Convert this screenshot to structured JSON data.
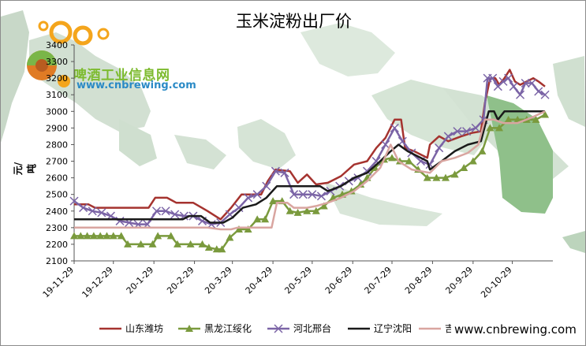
{
  "title": "玉米淀粉出厂价",
  "logo": {
    "text_cn": "啤酒工业信息网",
    "url_text": "www.cnbrewing.com"
  },
  "watermark": "www.cnbrewing.com",
  "chart_data": {
    "type": "line",
    "title": "玉米淀粉出厂价",
    "xlabel": "",
    "ylabel": "元/吨",
    "ylim": [
      2100,
      3400
    ],
    "yticks": [
      2100,
      2200,
      2300,
      2400,
      2500,
      2600,
      2700,
      2800,
      2900,
      3000,
      3100,
      3200,
      3300,
      3400
    ],
    "xlim": [
      "2019-11-29",
      "2020-11-29"
    ],
    "xticks": [
      {
        "date": "2019-11-29",
        "label": "19-11-29"
      },
      {
        "date": "2019-12-29",
        "label": "19-12-29"
      },
      {
        "date": "2020-01-29",
        "label": "20-1-29"
      },
      {
        "date": "2020-02-29",
        "label": "20-2-29"
      },
      {
        "date": "2020-03-29",
        "label": "20-3-29"
      },
      {
        "date": "2020-04-29",
        "label": "20-4-29"
      },
      {
        "date": "2020-05-29",
        "label": "20-5-29"
      },
      {
        "date": "2020-06-29",
        "label": "20-6-29"
      },
      {
        "date": "2020-07-29",
        "label": "20-7-29"
      },
      {
        "date": "2020-08-29",
        "label": "20-8-29"
      },
      {
        "date": "2020-09-29",
        "label": "20-9-29"
      },
      {
        "date": "2020-10-29",
        "label": "20-10-29"
      }
    ],
    "grid": false,
    "legend_position": "bottom",
    "series": [
      {
        "name": "山东潍坊",
        "color": "#a5332f",
        "marker": "none",
        "points": [
          [
            "2019-11-29",
            2440
          ],
          [
            "2019-12-10",
            2440
          ],
          [
            "2019-12-15",
            2420
          ],
          [
            "2020-01-25",
            2420
          ],
          [
            "2020-01-30",
            2480
          ],
          [
            "2020-02-08",
            2480
          ],
          [
            "2020-02-15",
            2450
          ],
          [
            "2020-02-28",
            2450
          ],
          [
            "2020-03-10",
            2400
          ],
          [
            "2020-03-20",
            2350
          ],
          [
            "2020-03-28",
            2420
          ],
          [
            "2020-04-05",
            2500
          ],
          [
            "2020-04-20",
            2500
          ],
          [
            "2020-04-25",
            2580
          ],
          [
            "2020-05-01",
            2650
          ],
          [
            "2020-05-12",
            2640
          ],
          [
            "2020-05-18",
            2570
          ],
          [
            "2020-05-25",
            2620
          ],
          [
            "2020-06-01",
            2560
          ],
          [
            "2020-06-10",
            2570
          ],
          [
            "2020-06-20",
            2610
          ],
          [
            "2020-06-30",
            2680
          ],
          [
            "2020-07-10",
            2700
          ],
          [
            "2020-07-17",
            2780
          ],
          [
            "2020-07-24",
            2840
          ],
          [
            "2020-07-31",
            2950
          ],
          [
            "2020-08-05",
            2950
          ],
          [
            "2020-08-08",
            2780
          ],
          [
            "2020-08-15",
            2760
          ],
          [
            "2020-08-20",
            2740
          ],
          [
            "2020-08-25",
            2720
          ],
          [
            "2020-08-27",
            2800
          ],
          [
            "2020-09-03",
            2850
          ],
          [
            "2020-09-10",
            2820
          ],
          [
            "2020-09-20",
            2850
          ],
          [
            "2020-09-28",
            2870
          ],
          [
            "2020-10-05",
            2880
          ],
          [
            "2020-10-08",
            3050
          ],
          [
            "2020-10-12",
            3200
          ],
          [
            "2020-10-16",
            3200
          ],
          [
            "2020-10-19",
            3160
          ],
          [
            "2020-10-23",
            3200
          ],
          [
            "2020-10-27",
            3250
          ],
          [
            "2020-10-31",
            3180
          ],
          [
            "2020-11-04",
            3160
          ],
          [
            "2020-11-09",
            3180
          ],
          [
            "2020-11-14",
            3200
          ],
          [
            "2020-11-18",
            3180
          ],
          [
            "2020-11-23",
            3150
          ]
        ]
      },
      {
        "name": "黑龙江绥化",
        "color": "#7a9a3d",
        "marker": "triangle",
        "points": [
          [
            "2019-11-29",
            2250
          ],
          [
            "2019-12-04",
            2250
          ],
          [
            "2019-12-09",
            2250
          ],
          [
            "2019-12-14",
            2250
          ],
          [
            "2019-12-19",
            2250
          ],
          [
            "2019-12-24",
            2250
          ],
          [
            "2019-12-29",
            2250
          ],
          [
            "2020-01-04",
            2250
          ],
          [
            "2020-01-09",
            2200
          ],
          [
            "2020-01-19",
            2200
          ],
          [
            "2020-01-28",
            2200
          ],
          [
            "2020-02-01",
            2250
          ],
          [
            "2020-02-11",
            2250
          ],
          [
            "2020-02-16",
            2200
          ],
          [
            "2020-02-26",
            2200
          ],
          [
            "2020-03-06",
            2200
          ],
          [
            "2020-03-11",
            2180
          ],
          [
            "2020-03-17",
            2170
          ],
          [
            "2020-03-21",
            2170
          ],
          [
            "2020-03-27",
            2240
          ],
          [
            "2020-04-03",
            2290
          ],
          [
            "2020-04-10",
            2290
          ],
          [
            "2020-04-17",
            2350
          ],
          [
            "2020-04-23",
            2350
          ],
          [
            "2020-04-29",
            2460
          ],
          [
            "2020-05-06",
            2460
          ],
          [
            "2020-05-12",
            2400
          ],
          [
            "2020-05-18",
            2390
          ],
          [
            "2020-05-25",
            2400
          ],
          [
            "2020-06-01",
            2400
          ],
          [
            "2020-06-07",
            2430
          ],
          [
            "2020-06-14",
            2480
          ],
          [
            "2020-06-21",
            2500
          ],
          [
            "2020-06-28",
            2520
          ],
          [
            "2020-07-05",
            2560
          ],
          [
            "2020-07-10",
            2600
          ],
          [
            "2020-07-16",
            2660
          ],
          [
            "2020-07-23",
            2710
          ],
          [
            "2020-07-29",
            2720
          ],
          [
            "2020-08-04",
            2700
          ],
          [
            "2020-08-11",
            2700
          ],
          [
            "2020-08-18",
            2650
          ],
          [
            "2020-08-25",
            2600
          ],
          [
            "2020-09-01",
            2600
          ],
          [
            "2020-09-08",
            2600
          ],
          [
            "2020-09-15",
            2620
          ],
          [
            "2020-09-22",
            2660
          ],
          [
            "2020-09-29",
            2700
          ],
          [
            "2020-10-06",
            2760
          ],
          [
            "2020-10-12",
            2900
          ],
          [
            "2020-10-19",
            2900
          ],
          [
            "2020-10-26",
            2950
          ],
          [
            "2020-11-02",
            2950
          ],
          [
            "2020-11-09",
            2950
          ],
          [
            "2020-11-16",
            2950
          ],
          [
            "2020-11-23",
            2980
          ]
        ]
      },
      {
        "name": "河北邢台",
        "color": "#7b64a6",
        "marker": "cross",
        "points": [
          [
            "2019-11-29",
            2460
          ],
          [
            "2019-12-06",
            2420
          ],
          [
            "2019-12-13",
            2400
          ],
          [
            "2019-12-20",
            2390
          ],
          [
            "2019-12-27",
            2370
          ],
          [
            "2020-01-03",
            2340
          ],
          [
            "2020-01-10",
            2330
          ],
          [
            "2020-01-17",
            2320
          ],
          [
            "2020-01-24",
            2320
          ],
          [
            "2020-01-31",
            2400
          ],
          [
            "2020-02-07",
            2400
          ],
          [
            "2020-02-14",
            2380
          ],
          [
            "2020-02-21",
            2370
          ],
          [
            "2020-02-28",
            2370
          ],
          [
            "2020-03-06",
            2340
          ],
          [
            "2020-03-13",
            2320
          ],
          [
            "2020-03-20",
            2330
          ],
          [
            "2020-03-27",
            2380
          ],
          [
            "2020-04-03",
            2420
          ],
          [
            "2020-04-10",
            2480
          ],
          [
            "2020-04-17",
            2500
          ],
          [
            "2020-04-24",
            2550
          ],
          [
            "2020-05-01",
            2640
          ],
          [
            "2020-05-08",
            2630
          ],
          [
            "2020-05-15",
            2500
          ],
          [
            "2020-05-22",
            2500
          ],
          [
            "2020-05-29",
            2500
          ],
          [
            "2020-06-05",
            2490
          ],
          [
            "2020-06-12",
            2520
          ],
          [
            "2020-06-19",
            2550
          ],
          [
            "2020-06-26",
            2580
          ],
          [
            "2020-07-03",
            2600
          ],
          [
            "2020-07-10",
            2640
          ],
          [
            "2020-07-17",
            2700
          ],
          [
            "2020-07-24",
            2800
          ],
          [
            "2020-07-31",
            2900
          ],
          [
            "2020-08-06",
            2820
          ],
          [
            "2020-08-13",
            2750
          ],
          [
            "2020-08-20",
            2700
          ],
          [
            "2020-08-27",
            2680
          ],
          [
            "2020-09-03",
            2780
          ],
          [
            "2020-09-10",
            2850
          ],
          [
            "2020-09-17",
            2880
          ],
          [
            "2020-09-24",
            2880
          ],
          [
            "2020-10-01",
            2900
          ],
          [
            "2020-10-07",
            2950
          ],
          [
            "2020-10-10",
            3200
          ],
          [
            "2020-10-14",
            3200
          ],
          [
            "2020-10-18",
            3150
          ],
          [
            "2020-10-22",
            3180
          ],
          [
            "2020-10-26",
            3200
          ],
          [
            "2020-10-30",
            3150
          ],
          [
            "2020-11-04",
            3100
          ],
          [
            "2020-11-08",
            3170
          ],
          [
            "2020-11-13",
            3170
          ],
          [
            "2020-11-18",
            3120
          ],
          [
            "2020-11-23",
            3100
          ]
        ]
      },
      {
        "name": "辽宁沈阳",
        "color": "#1a1a1a",
        "marker": "none",
        "points": [
          [
            "2019-11-29",
            2350
          ],
          [
            "2020-02-20",
            2350
          ],
          [
            "2020-02-25",
            2370
          ],
          [
            "2020-03-05",
            2370
          ],
          [
            "2020-03-12",
            2330
          ],
          [
            "2020-03-22",
            2330
          ],
          [
            "2020-03-29",
            2360
          ],
          [
            "2020-04-06",
            2420
          ],
          [
            "2020-04-16",
            2440
          ],
          [
            "2020-04-24",
            2480
          ],
          [
            "2020-05-02",
            2550
          ],
          [
            "2020-06-04",
            2550
          ],
          [
            "2020-06-10",
            2520
          ],
          [
            "2020-06-20",
            2550
          ],
          [
            "2020-06-30",
            2600
          ],
          [
            "2020-07-10",
            2630
          ],
          [
            "2020-07-20",
            2700
          ],
          [
            "2020-07-28",
            2760
          ],
          [
            "2020-08-03",
            2800
          ],
          [
            "2020-08-10",
            2760
          ],
          [
            "2020-08-20",
            2720
          ],
          [
            "2020-08-25",
            2700
          ],
          [
            "2020-08-27",
            2650
          ],
          [
            "2020-09-05",
            2700
          ],
          [
            "2020-09-15",
            2760
          ],
          [
            "2020-09-25",
            2800
          ],
          [
            "2020-10-05",
            2820
          ],
          [
            "2020-10-11",
            3000
          ],
          [
            "2020-10-15",
            3000
          ],
          [
            "2020-10-18",
            2950
          ],
          [
            "2020-10-23",
            3000
          ],
          [
            "2020-11-05",
            3000
          ],
          [
            "2020-11-23",
            3000
          ]
        ]
      },
      {
        "name": "吉林长春",
        "color": "#d9a5a0",
        "marker": "none",
        "points": [
          [
            "2019-11-29",
            2300
          ],
          [
            "2020-03-10",
            2300
          ],
          [
            "2020-03-20",
            2290
          ],
          [
            "2020-03-28",
            2290
          ],
          [
            "2020-04-02",
            2300
          ],
          [
            "2020-04-28",
            2300
          ],
          [
            "2020-05-02",
            2450
          ],
          [
            "2020-05-10",
            2450
          ],
          [
            "2020-05-15",
            2420
          ],
          [
            "2020-05-25",
            2420
          ],
          [
            "2020-06-01",
            2430
          ],
          [
            "2020-06-10",
            2450
          ],
          [
            "2020-06-20",
            2480
          ],
          [
            "2020-06-30",
            2520
          ],
          [
            "2020-07-10",
            2580
          ],
          [
            "2020-07-20",
            2660
          ],
          [
            "2020-07-28",
            2800
          ],
          [
            "2020-08-03",
            2700
          ],
          [
            "2020-08-13",
            2650
          ],
          [
            "2020-08-20",
            2640
          ],
          [
            "2020-08-27",
            2630
          ],
          [
            "2020-09-05",
            2700
          ],
          [
            "2020-09-15",
            2720
          ],
          [
            "2020-09-25",
            2750
          ],
          [
            "2020-10-03",
            2800
          ],
          [
            "2020-10-08",
            2950
          ],
          [
            "2020-10-15",
            2950
          ],
          [
            "2020-10-22",
            2930
          ],
          [
            "2020-11-02",
            2930
          ],
          [
            "2020-11-12",
            2960
          ],
          [
            "2020-11-23",
            3000
          ]
        ]
      }
    ]
  }
}
